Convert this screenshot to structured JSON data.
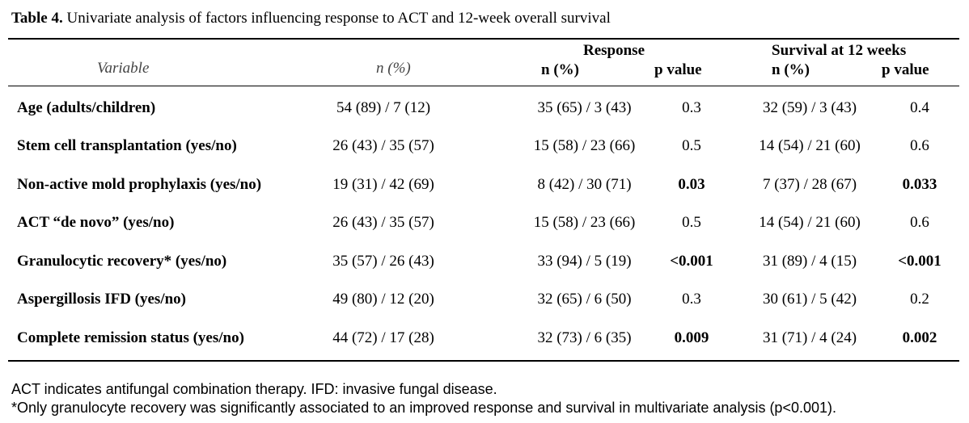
{
  "caption": {
    "label": "Table 4.",
    "text": " Univariate analysis of factors influencing response to ACT and 12-week overall survival"
  },
  "header": {
    "variable": "Variable",
    "n_pct": "n (%)",
    "response_group": "Response",
    "survival_group": "Survival at 12 weeks",
    "response_n": "n (%)",
    "response_p": "p value",
    "survival_n": "n (%)",
    "survival_p": "p value"
  },
  "rows": [
    {
      "variable": "Age (adults/children)",
      "n": "54 (89) / 7 (12)",
      "resp_n": "35 (65) / 3 (43)",
      "resp_p": "0.3",
      "resp_p_bold": false,
      "surv_n": "32 (59) / 3 (43)",
      "surv_p": "0.4",
      "surv_p_bold": false
    },
    {
      "variable": "Stem cell transplantation (yes/no)",
      "n": "26 (43) / 35 (57)",
      "resp_n": "15 (58) / 23 (66)",
      "resp_p": "0.5",
      "resp_p_bold": false,
      "surv_n": "14 (54) / 21 (60)",
      "surv_p": "0.6",
      "surv_p_bold": false
    },
    {
      "variable": "Non-active mold prophylaxis (yes/no)",
      "n": "19 (31) / 42 (69)",
      "resp_n": "8 (42) / 30 (71)",
      "resp_p": "0.03",
      "resp_p_bold": true,
      "surv_n": "7 (37) / 28 (67)",
      "surv_p": "0.033",
      "surv_p_bold": true
    },
    {
      "variable": "ACT “de novo” (yes/no)",
      "n": "26 (43) / 35 (57)",
      "resp_n": "15 (58) / 23 (66)",
      "resp_p": "0.5",
      "resp_p_bold": false,
      "surv_n": "14 (54) / 21 (60)",
      "surv_p": "0.6",
      "surv_p_bold": false
    },
    {
      "variable": "Granulocytic recovery* (yes/no)",
      "n": "35 (57) / 26 (43)",
      "resp_n": "33 (94) / 5 (19)",
      "resp_p": "<0.001",
      "resp_p_bold": true,
      "surv_n": "31 (89) / 4 (15)",
      "surv_p": "<0.001",
      "surv_p_bold": true
    },
    {
      "variable": "Aspergillosis IFD (yes/no)",
      "n": "49 (80) / 12 (20)",
      "resp_n": "32 (65) / 6 (50)",
      "resp_p": "0.3",
      "resp_p_bold": false,
      "surv_n": "30 (61) / 5 (42)",
      "surv_p": "0.2",
      "surv_p_bold": false
    },
    {
      "variable": "Complete remission status (yes/no)",
      "n": "44 (72) / 17 (28)",
      "resp_n": "32 (73) / 6 (35)",
      "resp_p": "0.009",
      "resp_p_bold": true,
      "surv_n": "31 (71) / 4 (24)",
      "surv_p": "0.002",
      "surv_p_bold": true
    }
  ],
  "footnotes": [
    "ACT indicates antifungal combination therapy. IFD: invasive fungal disease.",
    "*Only granulocyte recovery was significantly associated to an improved response and survival in multivariate analysis (p<0.001)."
  ]
}
